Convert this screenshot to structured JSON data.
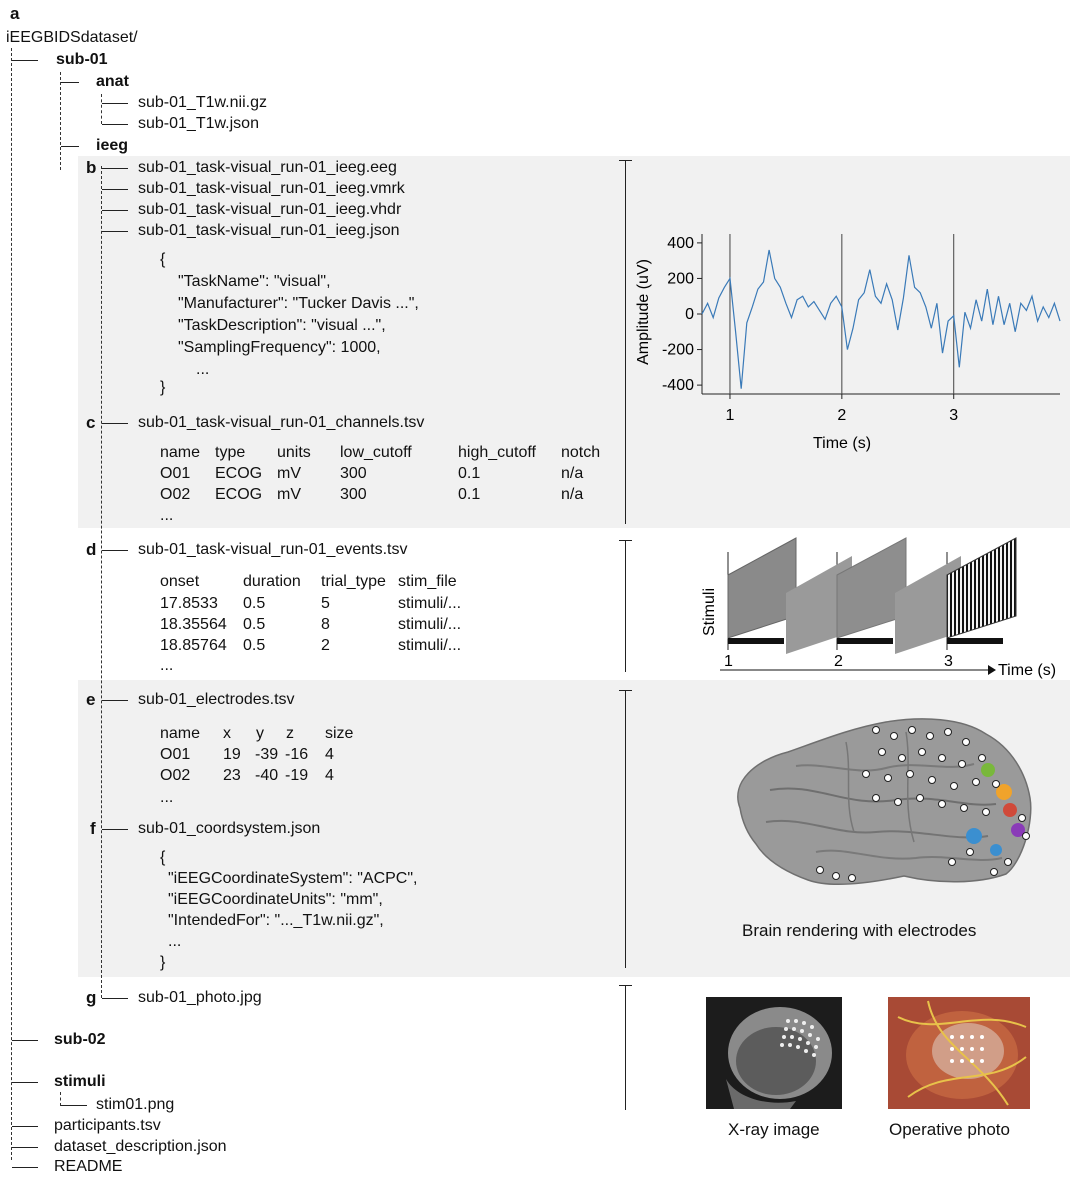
{
  "panel_a": {
    "label": "a",
    "root": "iEEGBIDSdataset/",
    "sub01": "sub-01",
    "anat": "anat",
    "anat_files": [
      "sub-01_T1w.nii.gz",
      "sub-01_T1w.json"
    ],
    "ieeg": "ieeg",
    "sub02": "sub-02",
    "stimuli": "stimuli",
    "stim_file": "stim01.png",
    "root_files": [
      "participants.tsv",
      "dataset_description.json",
      "README"
    ]
  },
  "panel_b": {
    "label": "b",
    "files": [
      "sub-01_task-visual_run-01_ieeg.eeg",
      "sub-01_task-visual_run-01_ieeg.vmrk",
      "sub-01_task-visual_run-01_ieeg.vhdr",
      "sub-01_task-visual_run-01_ieeg.json"
    ],
    "json_lines": [
      "{",
      "\"TaskName\": \"visual\",",
      "\"Manufacturer\": \"Tucker Davis ...\",",
      "\"TaskDescription\": \"visual ...\",",
      "\"SamplingFrequency\": 1000,",
      "...",
      "}"
    ]
  },
  "panel_c": {
    "label": "c",
    "file": "sub-01_task-visual_run-01_channels.tsv",
    "columns": [
      "name",
      "type",
      "units",
      "low_cutoff",
      "high_cutoff",
      "notch"
    ],
    "rows": [
      [
        "O01",
        "ECOG",
        "mV",
        "300",
        "0.1",
        "n/a"
      ],
      [
        "O02",
        "ECOG",
        "mV",
        "300",
        "0.1",
        "n/a"
      ]
    ],
    "ellipsis": "..."
  },
  "panel_d": {
    "label": "d",
    "file": "sub-01_task-visual_run-01_events.tsv",
    "columns": [
      "onset",
      "duration",
      "trial_type",
      "stim_file"
    ],
    "rows": [
      [
        "17.8533",
        "0.5",
        "5",
        "stimuli/..."
      ],
      [
        "18.35564",
        "0.5",
        "8",
        "stimuli/..."
      ],
      [
        "18.85764",
        "0.5",
        "2",
        "stimuli/..."
      ]
    ],
    "ellipsis": "..."
  },
  "panel_e": {
    "label": "e",
    "file": "sub-01_electrodes.tsv",
    "columns": [
      "name",
      "x",
      "y",
      "z",
      "size"
    ],
    "rows": [
      [
        "O01",
        "19",
        "-39",
        "-16",
        "4"
      ],
      [
        "O02",
        "23",
        "-40",
        "-19",
        "4"
      ]
    ],
    "ellipsis": "..."
  },
  "panel_f": {
    "label": "f",
    "file": "sub-01_coordsystem.json",
    "json_lines": [
      "{",
      "\"iEEGCoordinateSystem\": \"ACPC\",",
      "\"iEEGCoordinateUnits\": \"mm\",",
      "\"IntendedFor\": \"..._T1w.nii.gz\",",
      "...",
      "}"
    ]
  },
  "panel_g": {
    "label": "g",
    "file": "sub-01_photo.jpg"
  },
  "chart_data": {
    "type": "line",
    "xlabel": "Time (s)",
    "ylabel": "Amplitude (uV)",
    "xlim": [
      0.75,
      3.95
    ],
    "ylim": [
      -450,
      450
    ],
    "xticks": [
      1,
      2,
      3
    ],
    "yticks": [
      400,
      200,
      0,
      -200,
      -400
    ],
    "markers": [
      1,
      2,
      3
    ],
    "color": "#3a7ab8",
    "x": [
      0.75,
      0.8,
      0.85,
      0.9,
      0.95,
      1.0,
      1.05,
      1.1,
      1.15,
      1.2,
      1.25,
      1.3,
      1.35,
      1.4,
      1.45,
      1.5,
      1.55,
      1.6,
      1.65,
      1.7,
      1.75,
      1.8,
      1.85,
      1.9,
      1.95,
      2.0,
      2.05,
      2.1,
      2.15,
      2.2,
      2.25,
      2.3,
      2.35,
      2.4,
      2.45,
      2.5,
      2.55,
      2.6,
      2.65,
      2.7,
      2.75,
      2.8,
      2.85,
      2.9,
      2.95,
      3.0,
      3.05,
      3.1,
      3.15,
      3.2,
      3.25,
      3.3,
      3.35,
      3.4,
      3.45,
      3.5,
      3.55,
      3.6,
      3.65,
      3.7,
      3.75,
      3.8,
      3.85,
      3.9,
      3.95
    ],
    "values": [
      0,
      60,
      -20,
      90,
      150,
      200,
      -100,
      -420,
      -50,
      40,
      140,
      180,
      360,
      200,
      150,
      60,
      -20,
      80,
      100,
      40,
      70,
      20,
      -30,
      60,
      100,
      40,
      -200,
      -80,
      80,
      120,
      250,
      100,
      60,
      170,
      80,
      -90,
      90,
      330,
      150,
      120,
      40,
      -80,
      60,
      -220,
      -40,
      -10,
      -300,
      10,
      -80,
      80,
      -40,
      140,
      -60,
      100,
      -60,
      60,
      -100,
      60,
      20,
      100,
      -40,
      40,
      -20,
      60,
      -40
    ]
  },
  "stimuli_chart": {
    "ylabel": "Stimuli",
    "xlabel": "Time (s)",
    "ticks": [
      "1",
      "2",
      "3"
    ]
  },
  "brain": {
    "caption": "Brain rendering with electrodes"
  },
  "photos": {
    "xray_caption": "X-ray image",
    "operative_caption": "Operative photo"
  }
}
